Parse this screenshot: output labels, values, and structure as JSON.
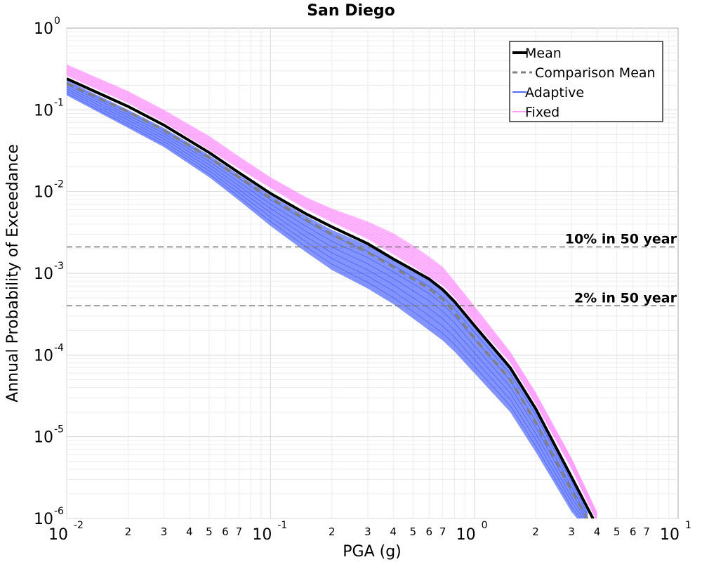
{
  "chart_data": {
    "type": "line",
    "title": "San Diego",
    "xlabel": "PGA (g)",
    "ylabel": "Annual Probability of Exceedance",
    "xscale": "log",
    "yscale": "log",
    "xlim": [
      0.01,
      10
    ],
    "ylim": [
      1e-06,
      1
    ],
    "grid": true,
    "legend_position": "top-right",
    "x_major_ticks": [
      {
        "base": "10",
        "exp": "-2",
        "value": 0.01
      },
      {
        "base": "10",
        "exp": "-1",
        "value": 0.1
      },
      {
        "base": "10",
        "exp": "0",
        "value": 1
      },
      {
        "base": "10",
        "exp": "1",
        "value": 10
      }
    ],
    "y_major_ticks": [
      {
        "base": "10",
        "exp": "0",
        "value": 1
      },
      {
        "base": "10",
        "exp": "-1",
        "value": 0.1
      },
      {
        "base": "10",
        "exp": "-2",
        "value": 0.01
      },
      {
        "base": "10",
        "exp": "-3",
        "value": 0.001
      },
      {
        "base": "10",
        "exp": "-4",
        "value": 0.0001
      },
      {
        "base": "10",
        "exp": "-5",
        "value": 1e-05
      },
      {
        "base": "10",
        "exp": "-6",
        "value": 1e-06
      }
    ],
    "x_minor_labels": [
      {
        "label": "2",
        "value": 0.02
      },
      {
        "label": "3",
        "value": 0.03
      },
      {
        "label": "4",
        "value": 0.04
      },
      {
        "label": "5",
        "value": 0.05
      },
      {
        "label": "6",
        "value": 0.06
      },
      {
        "label": "7",
        "value": 0.07
      },
      {
        "label": "2",
        "value": 0.2
      },
      {
        "label": "3",
        "value": 0.3
      },
      {
        "label": "4",
        "value": 0.4
      },
      {
        "label": "5",
        "value": 0.5
      },
      {
        "label": "6",
        "value": 0.6
      },
      {
        "label": "7",
        "value": 0.7
      },
      {
        "label": "2",
        "value": 2
      },
      {
        "label": "3",
        "value": 3
      },
      {
        "label": "4",
        "value": 4
      },
      {
        "label": "5",
        "value": 5
      },
      {
        "label": "6",
        "value": 6
      },
      {
        "label": "7",
        "value": 7
      }
    ],
    "legend": [
      {
        "label": "Mean",
        "color": "#000000",
        "style": "solid-thick"
      },
      {
        "label": "Comparison Mean",
        "color": "#808080",
        "style": "dashed"
      },
      {
        "label": "Adaptive",
        "color": "#1f3cff",
        "style": "solid-thin"
      },
      {
        "label": "Fixed",
        "color": "#ff80ff",
        "style": "solid-thin"
      }
    ],
    "reference_lines": [
      {
        "label": "10% in 50 year",
        "y": 0.0021
      },
      {
        "label": "2% in 50 year",
        "y": 0.0004
      }
    ],
    "series": [
      {
        "name": "Mean",
        "color": "#000000",
        "x": [
          0.01,
          0.02,
          0.03,
          0.05,
          0.07,
          0.1,
          0.15,
          0.2,
          0.3,
          0.4,
          0.5,
          0.6,
          0.7,
          0.8,
          1.0,
          1.5,
          2.0,
          3.0,
          4.0
        ],
        "y": [
          0.24,
          0.11,
          0.065,
          0.03,
          0.017,
          0.0095,
          0.0053,
          0.0037,
          0.0023,
          0.0015,
          0.0011,
          0.00085,
          0.00063,
          0.00045,
          0.00023,
          7e-05,
          2.2e-05,
          3.2e-06,
          8e-07
        ]
      },
      {
        "name": "Comparison Mean",
        "color": "#808080",
        "x": [
          0.01,
          0.02,
          0.03,
          0.05,
          0.07,
          0.1,
          0.15,
          0.2,
          0.3,
          0.4,
          0.5,
          0.6,
          0.7,
          0.8,
          1.0,
          1.5,
          2.0,
          3.0,
          4.0
        ],
        "y": [
          0.21,
          0.095,
          0.056,
          0.026,
          0.015,
          0.0083,
          0.0045,
          0.003,
          0.0018,
          0.0012,
          0.00085,
          0.00065,
          0.00048,
          0.00033,
          0.00016,
          5e-05,
          1.5e-05,
          2.2e-06,
          6e-07
        ]
      },
      {
        "name": "Fixed",
        "color": "#ff80ff",
        "x": [
          0.01,
          0.02,
          0.03,
          0.05,
          0.07,
          0.1,
          0.15,
          0.2,
          0.3,
          0.4,
          0.5,
          0.6,
          0.7,
          0.8,
          1.0,
          1.5,
          2.0,
          3.0,
          4.0
        ],
        "y_upper": [
          0.36,
          0.17,
          0.1,
          0.048,
          0.027,
          0.015,
          0.0085,
          0.0062,
          0.0043,
          0.0031,
          0.0022,
          0.0016,
          0.0012,
          0.0008,
          0.0004,
          0.00011,
          3.5e-05,
          5.5e-06,
          1.2e-06
        ],
        "y_lower": [
          0.26,
          0.12,
          0.07,
          0.032,
          0.019,
          0.011,
          0.006,
          0.0042,
          0.0026,
          0.0017,
          0.0012,
          0.0009,
          0.0007,
          0.0005,
          0.00025,
          8e-05,
          2.5e-05,
          4e-06,
          9e-07
        ]
      },
      {
        "name": "Adaptive",
        "color": "#1f3cff",
        "x": [
          0.01,
          0.02,
          0.03,
          0.05,
          0.07,
          0.1,
          0.15,
          0.2,
          0.3,
          0.4,
          0.5,
          0.6,
          0.7,
          0.8,
          1.0,
          1.5,
          2.0,
          3.0,
          3.6
        ],
        "y_upper": [
          0.23,
          0.1,
          0.06,
          0.028,
          0.016,
          0.009,
          0.005,
          0.0034,
          0.0022,
          0.0015,
          0.0011,
          0.00085,
          0.00063,
          0.00045,
          0.00023,
          7e-05,
          2.2e-05,
          3.2e-06,
          1.2e-06
        ],
        "y_lower": [
          0.15,
          0.06,
          0.035,
          0.015,
          0.0078,
          0.0038,
          0.0018,
          0.0011,
          0.00065,
          0.00042,
          0.00028,
          0.0002,
          0.00015,
          0.00011,
          6e-05,
          2e-05,
          6.5e-06,
          1.2e-06,
          7e-07
        ]
      }
    ]
  }
}
